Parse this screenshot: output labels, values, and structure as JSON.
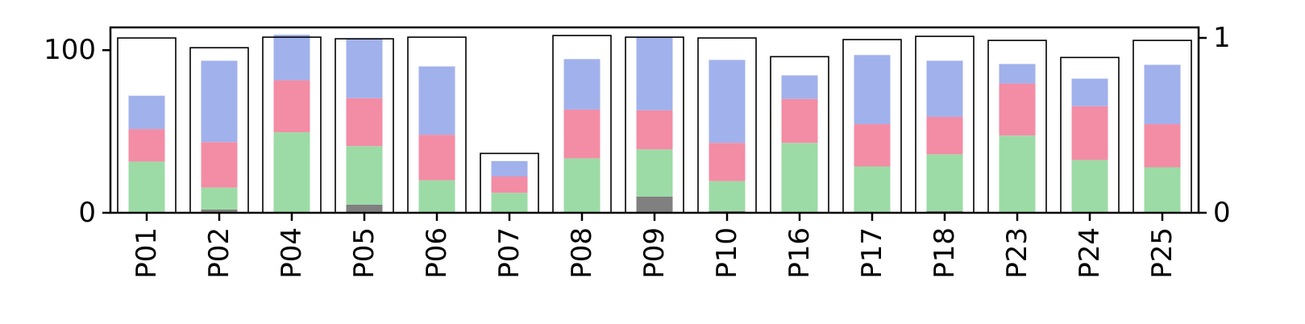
{
  "chart_data": {
    "type": "bar",
    "stacked": true,
    "categories": [
      "P01",
      "P02",
      "P04",
      "P05",
      "P06",
      "P07",
      "P08",
      "P09",
      "P10",
      "P16",
      "P17",
      "P18",
      "P23",
      "P24",
      "P25"
    ],
    "ylim_left": [
      0,
      114
    ],
    "yticks_left": [
      0,
      100
    ],
    "ylim_right": [
      0,
      1.06
    ],
    "yticks_right": [
      0,
      1
    ],
    "outline_values": [
      107.5,
      101.5,
      108.0,
      107.0,
      108.0,
      36.5,
      109.0,
      108.0,
      107.5,
      96.0,
      106.5,
      108.5,
      106.0,
      95.5,
      106.0
    ],
    "series": [
      {
        "color": "#808080",
        "values": [
          0.5,
          2.0,
          0.5,
          5.0,
          0.5,
          0.3,
          0.5,
          10.0,
          1.0,
          0.5,
          0.5,
          1.0,
          0.5,
          0.5,
          0.5
        ]
      },
      {
        "color": "#9cdba6",
        "values": [
          31.0,
          13.5,
          49.0,
          36.0,
          19.5,
          12.0,
          33.0,
          29.0,
          18.5,
          42.5,
          28.0,
          35.0,
          47.0,
          32.0,
          27.5
        ]
      },
      {
        "color": "#f38ca5",
        "values": [
          20.0,
          28.0,
          32.0,
          29.5,
          28.0,
          10.0,
          30.0,
          24.0,
          23.5,
          27.0,
          26.0,
          23.0,
          32.0,
          33.0,
          26.5
        ]
      },
      {
        "color": "#a1b1ec",
        "values": [
          20.5,
          50.0,
          28.0,
          36.5,
          42.0,
          9.5,
          31.0,
          45.0,
          51.0,
          14.5,
          42.5,
          34.5,
          12.0,
          17.0,
          36.5
        ]
      }
    ]
  }
}
